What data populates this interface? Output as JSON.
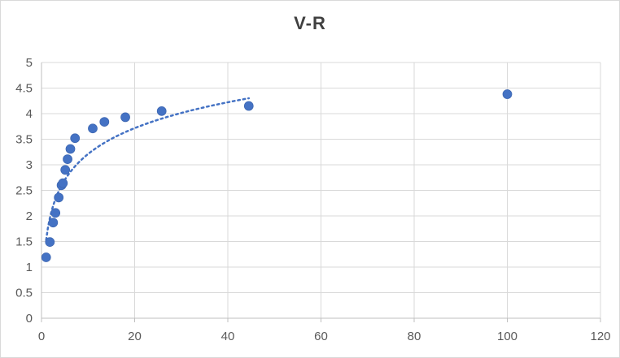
{
  "chart_data": {
    "type": "scatter",
    "title": "V-R",
    "xlabel": "",
    "ylabel": "",
    "xlim": [
      0,
      120
    ],
    "ylim": [
      0,
      5
    ],
    "x_ticks": [
      "0",
      "20",
      "40",
      "60",
      "80",
      "100",
      "120"
    ],
    "y_ticks": [
      "0",
      "0.5",
      "1",
      "1.5",
      "2",
      "2.5",
      "3",
      "3.5",
      "4",
      "4.5",
      "5"
    ],
    "grid": true,
    "legend": "none",
    "marker_color": "#4472C4",
    "trendline_color": "#4472C4",
    "series": [
      {
        "points": [
          [
            1.0,
            1.19
          ],
          [
            1.8,
            1.49
          ],
          [
            2.5,
            1.87
          ],
          [
            3.0,
            2.06
          ],
          [
            3.7,
            2.36
          ],
          [
            4.3,
            2.6
          ],
          [
            4.6,
            2.64
          ],
          [
            5.1,
            2.9
          ],
          [
            5.6,
            3.11
          ],
          [
            6.2,
            3.31
          ],
          [
            7.2,
            3.52
          ],
          [
            11.0,
            3.71
          ],
          [
            13.5,
            3.84
          ],
          [
            18.0,
            3.93
          ],
          [
            25.8,
            4.05
          ],
          [
            44.5,
            4.15
          ],
          [
            100.0,
            4.38
          ]
        ]
      }
    ],
    "trendline": {
      "type": "logarithmic",
      "x_from": 1.0,
      "x_to": 44.5,
      "a": 1.53,
      "b": 0.73
    }
  }
}
